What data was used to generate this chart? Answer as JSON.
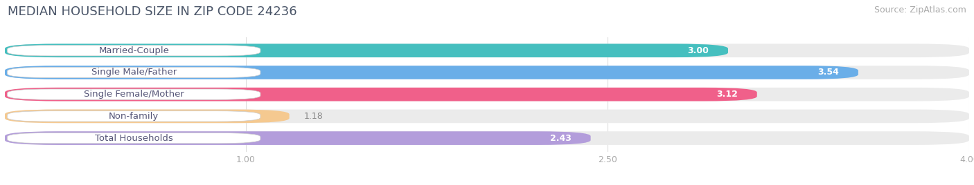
{
  "title": "MEDIAN HOUSEHOLD SIZE IN ZIP CODE 24236",
  "source": "Source: ZipAtlas.com",
  "categories": [
    "Married-Couple",
    "Single Male/Father",
    "Single Female/Mother",
    "Non-family",
    "Total Households"
  ],
  "values": [
    3.0,
    3.54,
    3.12,
    1.18,
    2.43
  ],
  "bar_colors": [
    "#45BFBF",
    "#6aaee8",
    "#f0608a",
    "#f5c990",
    "#b39ddb"
  ],
  "xmin": 0.0,
  "xmax": 4.0,
  "xticks": [
    1.0,
    2.5,
    4.0
  ],
  "background_color": "#ffffff",
  "bar_bg_color": "#ebebeb",
  "title_fontsize": 13,
  "source_fontsize": 9,
  "label_fontsize": 9.5,
  "value_fontsize": 9
}
